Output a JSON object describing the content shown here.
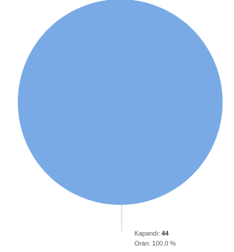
{
  "chart_data": {
    "type": "pie",
    "slices": [
      {
        "name": "Kapandı",
        "value": 44,
        "percent": 100.0,
        "color": "#79aae6"
      }
    ],
    "labels": {
      "line1_prefix": "Kapandı:",
      "line1_value": "44",
      "line2": "Oran: 100.0 %"
    },
    "leader_line_color": "#c8c8c8"
  }
}
